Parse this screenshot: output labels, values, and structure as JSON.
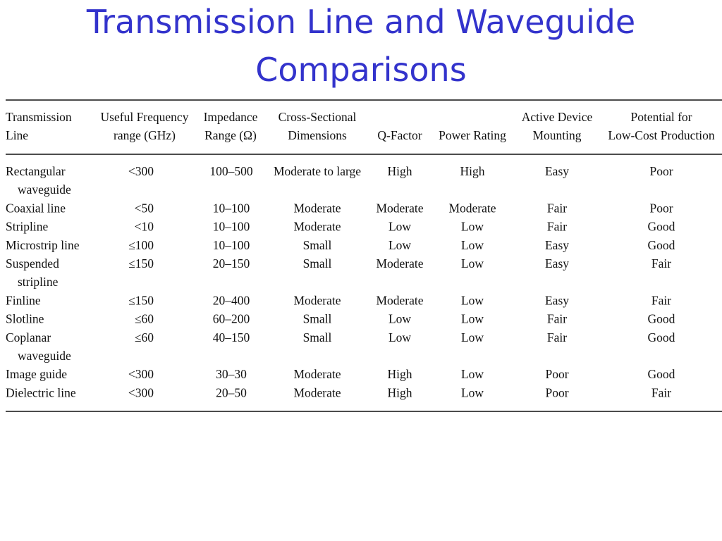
{
  "title": {
    "lines": [
      "Transmission Line and Waveguide",
      "Comparisons"
    ]
  },
  "table": {
    "header": [
      [
        "Transmission",
        "Line"
      ],
      [
        "Useful Frequency",
        "range  (GHz)"
      ],
      [
        "Impedance",
        "Range (Ω)"
      ],
      [
        "Cross-Sectional",
        "Dimensions"
      ],
      [
        "Q-Factor"
      ],
      [
        "Power Rating"
      ],
      [
        "Active Device",
        "Mounting"
      ],
      [
        "Potential for",
        "Low-Cost Production"
      ]
    ],
    "rows": [
      [
        [
          "Rectangular",
          "waveguide"
        ],
        "<300",
        "100–500",
        "Moderate to large",
        "High",
        "High",
        "Easy",
        "Poor"
      ],
      [
        [
          "Coaxial line"
        ],
        "<50",
        "10–100",
        "Moderate",
        "Moderate",
        "Moderate",
        "Fair",
        "Poor"
      ],
      [
        [
          "Stripline"
        ],
        "<10",
        "10–100",
        "Moderate",
        "Low",
        "Low",
        "Fair",
        "Good"
      ],
      [
        [
          "Microstrip line"
        ],
        "≤100",
        "10–100",
        "Small",
        "Low",
        "Low",
        "Easy",
        "Good"
      ],
      [
        [
          "Suspended",
          "stripline"
        ],
        "≤150",
        "20–150",
        "Small",
        "Moderate",
        "Low",
        "Easy",
        "Fair"
      ],
      [
        [
          "Finline"
        ],
        "≤150",
        "20–400",
        "Moderate",
        "Moderate",
        "Low",
        "Easy",
        "Fair"
      ],
      [
        [
          "Slotline"
        ],
        "≤60",
        "60–200",
        "Small",
        "Low",
        "Low",
        "Fair",
        "Good"
      ],
      [
        [
          "Coplanar",
          "waveguide"
        ],
        "≤60",
        "40–150",
        "Small",
        "Low",
        "Low",
        "Fair",
        "Good"
      ],
      [
        [
          "Image guide"
        ],
        "<300",
        "30–30",
        "Moderate",
        "High",
        "Low",
        "Poor",
        "Good"
      ],
      [
        [
          "Dielectric line"
        ],
        "<300",
        "20–50",
        "Moderate",
        "High",
        "Low",
        "Poor",
        "Fair"
      ]
    ]
  }
}
